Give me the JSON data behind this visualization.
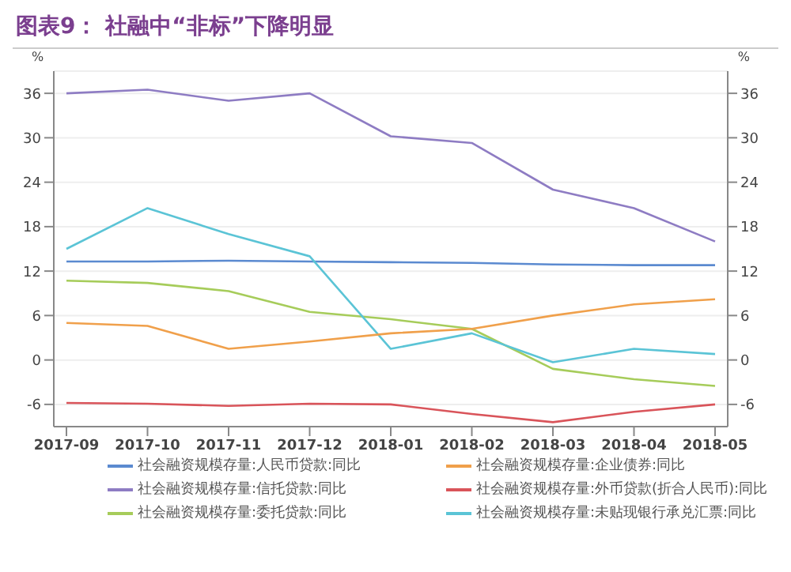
{
  "chart_data": {
    "type": "line",
    "title": "图表9： 社融中“非标”下降明显",
    "categories": [
      "2017-09",
      "2017-10",
      "2017-11",
      "2017-12",
      "2018-01",
      "2018-02",
      "2018-03",
      "2018-04",
      "2018-05"
    ],
    "series": [
      {
        "name": "社会融资规模存量:人民币贷款:同比",
        "color": "#5b8ad0",
        "values": [
          13.3,
          13.3,
          13.4,
          13.3,
          13.2,
          13.1,
          12.9,
          12.8,
          12.8
        ]
      },
      {
        "name": "社会融资规模存量:外币贷款(折合人民币):同比",
        "color": "#d9545a",
        "values": [
          -5.8,
          -5.9,
          -6.2,
          -5.9,
          -6.0,
          -7.3,
          -8.4,
          -7.0,
          -6.0
        ]
      },
      {
        "name": "社会融资规模存量:委托贷款:同比",
        "color": "#a6cc5a",
        "values": [
          10.7,
          10.4,
          9.3,
          6.5,
          5.5,
          4.2,
          -1.2,
          -2.6,
          -3.5
        ]
      },
      {
        "name": "社会融资规模存量:信托贷款:同比",
        "color": "#8e7cc3",
        "values": [
          36,
          36.5,
          35,
          36,
          30.2,
          29.3,
          23,
          20.5,
          16
        ]
      },
      {
        "name": "社会融资规模存量:未贴现银行承兑汇票:同比",
        "color": "#5bc4d6",
        "values": [
          15,
          20.5,
          17,
          14,
          1.5,
          3.6,
          -0.3,
          1.5,
          0.8
        ]
      },
      {
        "name": "社会融资规模存量:企业债券:同比",
        "color": "#f0a04b",
        "values": [
          5,
          4.6,
          1.5,
          2.5,
          3.6,
          4.2,
          6,
          7.5,
          8.2
        ]
      }
    ],
    "ylabel": "%",
    "y2label": "%",
    "ylim": [
      -9,
      39
    ],
    "yticks": [
      -6,
      0,
      6,
      12,
      18,
      24,
      30,
      36
    ],
    "y2lim": [
      -9,
      39
    ],
    "y2ticks": [
      -6,
      0,
      6,
      12,
      18,
      24,
      30,
      36
    ],
    "grid": "y",
    "legend": "bottom",
    "marker": "none",
    "line_style": "solid"
  }
}
